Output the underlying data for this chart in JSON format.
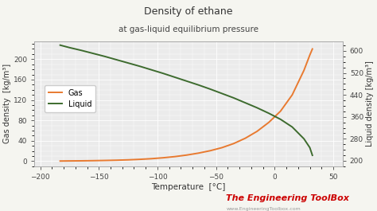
{
  "title": "Density of ethane",
  "subtitle": "at gas-liquid equilibrium pressure",
  "xlabel": "Temperature  [°C]",
  "ylabel_left": "Gas density  [kg/m³]",
  "ylabel_right": "Liquid density [kg/m³]",
  "xlim": [
    -205,
    58
  ],
  "ylim_left": [
    -10,
    235
  ],
  "ylim_right": [
    180,
    635
  ],
  "xticks": [
    -200,
    -150,
    -100,
    -50,
    0,
    50
  ],
  "yticks_left": [
    0,
    40,
    80,
    120,
    160,
    200
  ],
  "yticks_right": [
    200,
    280,
    360,
    440,
    520,
    600
  ],
  "gas_color": "#e87a30",
  "liquid_color": "#3d6b2e",
  "plot_bg": "#ebebeb",
  "fig_bg": "#f5f5f0",
  "grid_color": "#ffffff",
  "watermark_text": "The Engineering ToolBox",
  "watermark_color": "#cc0000",
  "watermark_sub": "www.EngineeringToolbox.com",
  "watermark_sub_color": "#999999",
  "legend_gas": "Gas",
  "legend_liquid": "Liquid",
  "gas_T": [
    -183,
    -175,
    -165,
    -155,
    -145,
    -135,
    -125,
    -115,
    -105,
    -95,
    -85,
    -75,
    -65,
    -55,
    -45,
    -35,
    -25,
    -15,
    -5,
    5,
    15,
    25,
    30,
    32.2
  ],
  "gas_rho": [
    0.3,
    0.5,
    0.7,
    1.0,
    1.4,
    1.9,
    2.6,
    3.6,
    4.9,
    6.7,
    9.0,
    12.0,
    15.8,
    20.5,
    26.5,
    34.5,
    45.0,
    58.5,
    76.0,
    98.0,
    130.0,
    178.0,
    208.0,
    220.0
  ],
  "liq_T": [
    -183,
    -175,
    -165,
    -155,
    -145,
    -135,
    -125,
    -115,
    -105,
    -95,
    -85,
    -75,
    -65,
    -55,
    -45,
    -35,
    -25,
    -15,
    -5,
    5,
    15,
    25,
    30,
    32.2
  ],
  "liq_rho": [
    621,
    612,
    602,
    591,
    580,
    568,
    556,
    544,
    531,
    518,
    504,
    490,
    476,
    461,
    445,
    429,
    411,
    393,
    373,
    351,
    323,
    280,
    248,
    220
  ]
}
